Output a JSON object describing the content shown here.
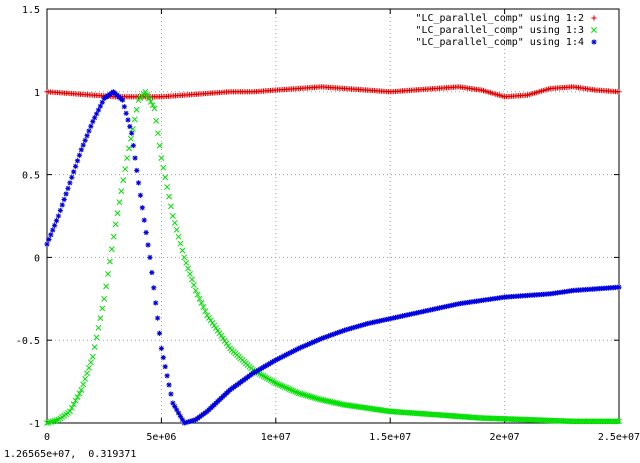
{
  "status_readout": "1.26565e+07,  0.319371",
  "chart_data": {
    "type": "scatter",
    "title": "",
    "xlabel": "",
    "ylabel": "",
    "xlim": [
      0,
      25000000
    ],
    "ylim": [
      -1,
      1.5
    ],
    "x_ticks": [
      0,
      5000000,
      10000000,
      15000000,
      20000000,
      25000000
    ],
    "x_tick_labels": [
      "0",
      "5e+06",
      "1e+07",
      "1.5e+07",
      "2e+07",
      "2.5e+07"
    ],
    "y_ticks": [
      -1,
      -0.5,
      0,
      0.5,
      1,
      1.5
    ],
    "y_tick_labels": [
      "-1",
      "-0.5",
      "0",
      "0.5",
      "1",
      "1.5"
    ],
    "grid": true,
    "legend_position": "top-right",
    "series": [
      {
        "name": "\"LC_parallel_comp\" using 1:2",
        "marker": "+",
        "color": "#e00000",
        "points": [
          [
            0,
            1.0
          ],
          [
            1000000,
            0.99
          ],
          [
            2000000,
            0.98
          ],
          [
            3000000,
            0.97
          ],
          [
            4000000,
            0.97
          ],
          [
            5000000,
            0.97
          ],
          [
            6000000,
            0.98
          ],
          [
            7000000,
            0.99
          ],
          [
            8000000,
            1.0
          ],
          [
            9000000,
            1.0
          ],
          [
            10000000,
            1.01
          ],
          [
            11000000,
            1.02
          ],
          [
            12000000,
            1.03
          ],
          [
            13000000,
            1.02
          ],
          [
            14000000,
            1.01
          ],
          [
            15000000,
            1.0
          ],
          [
            16000000,
            1.01
          ],
          [
            17000000,
            1.02
          ],
          [
            18000000,
            1.03
          ],
          [
            19000000,
            1.01
          ],
          [
            20000000,
            0.97
          ],
          [
            21000000,
            0.98
          ],
          [
            22000000,
            1.02
          ],
          [
            23000000,
            1.03
          ],
          [
            24000000,
            1.01
          ],
          [
            25000000,
            1.0
          ]
        ]
      },
      {
        "name": "\"LC_parallel_comp\" using 1:3",
        "marker": "x",
        "color": "#00e000",
        "points": [
          [
            0,
            -1.0
          ],
          [
            500000,
            -0.98
          ],
          [
            1000000,
            -0.93
          ],
          [
            1500000,
            -0.8
          ],
          [
            2000000,
            -0.6
          ],
          [
            2500000,
            -0.25
          ],
          [
            3000000,
            0.2
          ],
          [
            3500000,
            0.6
          ],
          [
            4000000,
            0.95
          ],
          [
            4300000,
            1.0
          ],
          [
            4700000,
            0.9
          ],
          [
            5000000,
            0.6
          ],
          [
            5500000,
            0.25
          ],
          [
            6000000,
            0.0
          ],
          [
            6500000,
            -0.2
          ],
          [
            7000000,
            -0.35
          ],
          [
            8000000,
            -0.55
          ],
          [
            9000000,
            -0.68
          ],
          [
            10000000,
            -0.76
          ],
          [
            11000000,
            -0.82
          ],
          [
            12000000,
            -0.86
          ],
          [
            13000000,
            -0.89
          ],
          [
            14000000,
            -0.91
          ],
          [
            15000000,
            -0.93
          ],
          [
            16000000,
            -0.94
          ],
          [
            17000000,
            -0.95
          ],
          [
            18000000,
            -0.96
          ],
          [
            19000000,
            -0.97
          ],
          [
            20000000,
            -0.975
          ],
          [
            21000000,
            -0.98
          ],
          [
            22000000,
            -0.985
          ],
          [
            23000000,
            -0.99
          ],
          [
            24000000,
            -0.99
          ],
          [
            25000000,
            -0.99
          ]
        ]
      },
      {
        "name": "\"LC_parallel_comp\" using 1:4",
        "marker": "*",
        "color": "#0000e0",
        "points": [
          [
            0,
            0.08
          ],
          [
            500000,
            0.25
          ],
          [
            1000000,
            0.45
          ],
          [
            1500000,
            0.65
          ],
          [
            2000000,
            0.82
          ],
          [
            2500000,
            0.96
          ],
          [
            2900000,
            1.0
          ],
          [
            3300000,
            0.95
          ],
          [
            3700000,
            0.75
          ],
          [
            4000000,
            0.45
          ],
          [
            4500000,
            0.0
          ],
          [
            5000000,
            -0.55
          ],
          [
            5500000,
            -0.88
          ],
          [
            6000000,
            -1.0
          ],
          [
            6500000,
            -0.98
          ],
          [
            7000000,
            -0.93
          ],
          [
            8000000,
            -0.8
          ],
          [
            9000000,
            -0.7
          ],
          [
            10000000,
            -0.62
          ],
          [
            11000000,
            -0.55
          ],
          [
            12000000,
            -0.49
          ],
          [
            13000000,
            -0.44
          ],
          [
            14000000,
            -0.4
          ],
          [
            15000000,
            -0.37
          ],
          [
            16000000,
            -0.34
          ],
          [
            17000000,
            -0.31
          ],
          [
            18000000,
            -0.28
          ],
          [
            19000000,
            -0.26
          ],
          [
            20000000,
            -0.24
          ],
          [
            21000000,
            -0.23
          ],
          [
            22000000,
            -0.22
          ],
          [
            23000000,
            -0.2
          ],
          [
            24000000,
            -0.19
          ],
          [
            25000000,
            -0.18
          ]
        ]
      }
    ]
  }
}
